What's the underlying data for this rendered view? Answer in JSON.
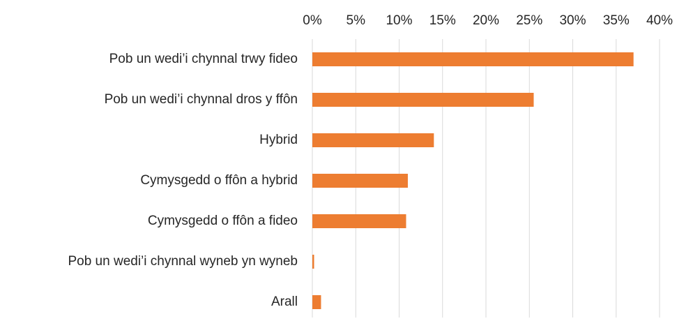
{
  "chart_data": {
    "type": "bar",
    "orientation": "horizontal",
    "categories": [
      "Pob un wedi’i chynnal trwy fideo",
      "Pob un wedi’i chynnal dros y ffôn",
      "Hybrid",
      "Cymysgedd o ffôn a hybrid",
      "Cymysgedd o ffôn a fideo",
      "Pob un wedi’i chynnal wyneb yn wyneb",
      "Arall"
    ],
    "values": [
      37,
      25.5,
      14,
      11,
      10.8,
      0.2,
      1
    ],
    "color": "#ed7d31",
    "xlim": [
      0,
      40
    ],
    "xticks": [
      {
        "value": 0,
        "label": "0%"
      },
      {
        "value": 5,
        "label": "5%"
      },
      {
        "value": 10,
        "label": "10%"
      },
      {
        "value": 15,
        "label": "15%"
      },
      {
        "value": 20,
        "label": "20%"
      },
      {
        "value": 25,
        "label": "25%"
      },
      {
        "value": 30,
        "label": "30%"
      },
      {
        "value": 35,
        "label": "35%"
      },
      {
        "value": 40,
        "label": "40%"
      }
    ],
    "grid": true
  }
}
